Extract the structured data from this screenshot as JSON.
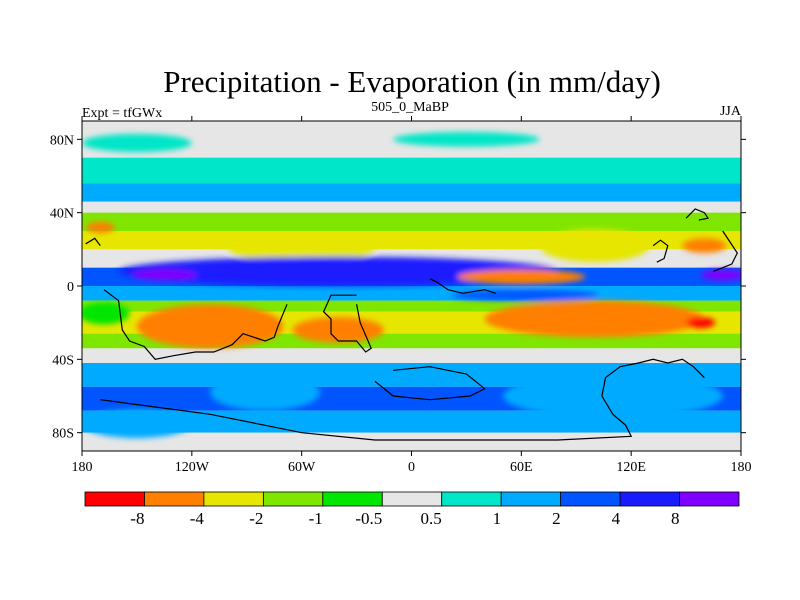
{
  "chart_data": {
    "type": "heatmap",
    "title": "Precipitation - Evaporation (in mm/day)",
    "subtitle_left": "Expt = tfGWx",
    "subtitle_center": "505_0_MaBP",
    "subtitle_right": "JJA",
    "xlim": [
      -180,
      180
    ],
    "ylim": [
      -90,
      90
    ],
    "x_ticks": [
      {
        "value": -180,
        "label": "180"
      },
      {
        "value": -120,
        "label": "120W"
      },
      {
        "value": -60,
        "label": "60W"
      },
      {
        "value": 0,
        "label": "0"
      },
      {
        "value": 60,
        "label": "60E"
      },
      {
        "value": 120,
        "label": "120E"
      },
      {
        "value": 180,
        "label": "180"
      }
    ],
    "y_ticks": [
      {
        "value": 80,
        "label": "80N"
      },
      {
        "value": 40,
        "label": "40N"
      },
      {
        "value": 0,
        "label": "0"
      },
      {
        "value": -40,
        "label": "40S"
      },
      {
        "value": -80,
        "label": "80S"
      }
    ],
    "levels": [
      "-8",
      "-4",
      "-2",
      "-1",
      "-0.5",
      "0.5",
      "1",
      "2",
      "4",
      "8"
    ],
    "colors": [
      "#ff0000",
      "#ff7f00",
      "#e6e600",
      "#7fe600",
      "#00e600",
      "#e6e6e6",
      "#00e6c8",
      "#00aaff",
      "#0055ff",
      "#1a1aff",
      "#8000ff"
    ],
    "bands": [
      {
        "lat": [
          70,
          90
        ],
        "color": "#e6e6e6"
      },
      {
        "lat": [
          56,
          70
        ],
        "color": "#00e6c8"
      },
      {
        "lat": [
          46,
          56
        ],
        "color": "#00aaff"
      },
      {
        "lat": [
          40,
          46
        ],
        "color": "#e6e6e6"
      },
      {
        "lat": [
          30,
          40
        ],
        "color": "#7fe600"
      },
      {
        "lat": [
          20,
          30
        ],
        "color": "#e6e600"
      },
      {
        "lat": [
          10,
          20
        ],
        "color": "#e6e6e6"
      },
      {
        "lat": [
          0,
          10
        ],
        "color": "#0055ff"
      },
      {
        "lat": [
          -8,
          0
        ],
        "color": "#00aaff"
      },
      {
        "lat": [
          -14,
          -8
        ],
        "color": "#7fe600"
      },
      {
        "lat": [
          -26,
          -14
        ],
        "color": "#e6e600"
      },
      {
        "lat": [
          -34,
          -26
        ],
        "color": "#7fe600"
      },
      {
        "lat": [
          -42,
          -34
        ],
        "color": "#e6e6e6"
      },
      {
        "lat": [
          -55,
          -42
        ],
        "color": "#00aaff"
      },
      {
        "lat": [
          -68,
          -55
        ],
        "color": "#0055ff"
      },
      {
        "lat": [
          -80,
          -68
        ],
        "color": "#00aaff"
      },
      {
        "lat": [
          -90,
          -80
        ],
        "color": "#e6e6e6"
      }
    ],
    "blobs": [
      {
        "lon": -150,
        "lat": 78,
        "rlon": 30,
        "rlat": 5,
        "color": "#00e6c8"
      },
      {
        "lon": 30,
        "lat": 80,
        "rlon": 40,
        "rlat": 4,
        "color": "#00e6c8"
      },
      {
        "lon": -60,
        "lat": 20,
        "rlon": 40,
        "rlat": 7,
        "color": "#e6e600"
      },
      {
        "lon": 100,
        "lat": 22,
        "rlon": 30,
        "rlat": 9,
        "color": "#e6e600"
      },
      {
        "lon": 160,
        "lat": 22,
        "rlon": 12,
        "rlat": 4,
        "color": "#ff7f00"
      },
      {
        "lon": -170,
        "lat": 32,
        "rlon": 8,
        "rlat": 3,
        "color": "#ff7f00"
      },
      {
        "lon": -40,
        "lat": 8,
        "rlon": 120,
        "rlat": 8,
        "color": "#1a1aff"
      },
      {
        "lon": -135,
        "lat": 6,
        "rlon": 18,
        "rlat": 3,
        "color": "#8000ff"
      },
      {
        "lon": 170,
        "lat": 6,
        "rlon": 12,
        "rlat": 3,
        "color": "#8000ff"
      },
      {
        "lon": 60,
        "lat": 5,
        "rlon": 35,
        "rlat": 4,
        "color": "#ff7f00"
      },
      {
        "lon": 62,
        "lat": -5,
        "rlon": 40,
        "rlat": 3,
        "color": "#0055ff"
      },
      {
        "lon": -110,
        "lat": -22,
        "rlon": 40,
        "rlat": 12,
        "color": "#ff7f00"
      },
      {
        "lon": -40,
        "lat": -24,
        "rlon": 25,
        "rlat": 7,
        "color": "#ff7f00"
      },
      {
        "lon": 100,
        "lat": -18,
        "rlon": 60,
        "rlat": 10,
        "color": "#ff7f00"
      },
      {
        "lon": 158,
        "lat": -20,
        "rlon": 8,
        "rlat": 3,
        "color": "#ff0000"
      },
      {
        "lon": -168,
        "lat": -15,
        "rlon": 14,
        "rlat": 6,
        "color": "#00e600"
      },
      {
        "lon": -80,
        "lat": -58,
        "rlon": 30,
        "rlat": 10,
        "color": "#00aaff"
      },
      {
        "lon": 110,
        "lat": -60,
        "rlon": 60,
        "rlat": 12,
        "color": "#00aaff"
      },
      {
        "lon": -150,
        "lat": -75,
        "rlon": 30,
        "rlat": 8,
        "color": "#00aaff"
      }
    ],
    "coastline_color": "#000000"
  }
}
